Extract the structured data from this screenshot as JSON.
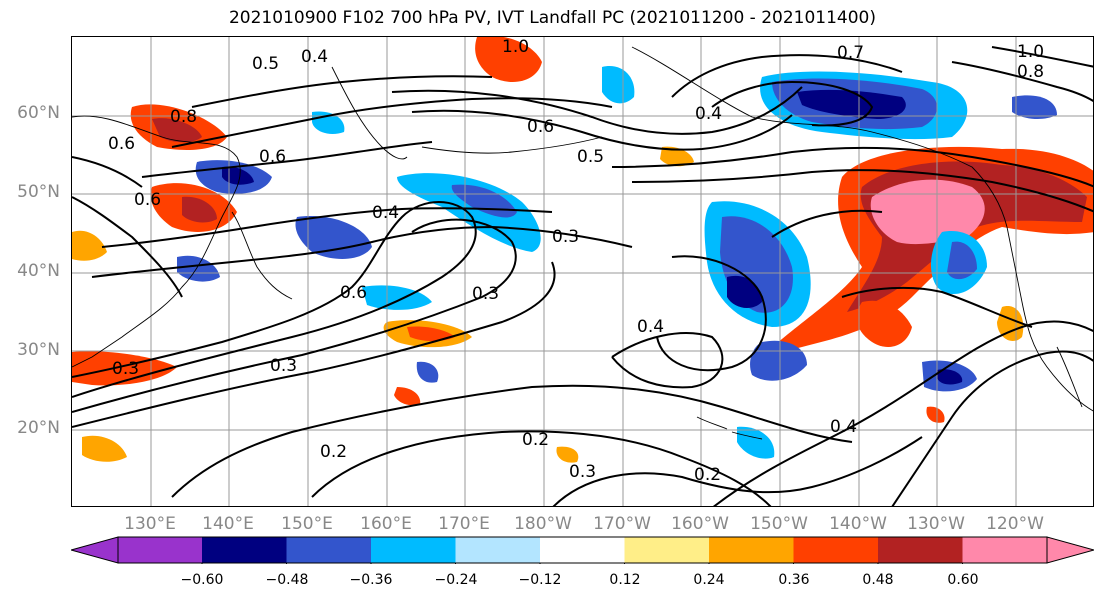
{
  "title": "2021010900 F102 700 hPa PV, IVT Landfall PC (2021011200 - 2021011400)",
  "lat_labels": [
    "60°N",
    "50°N",
    "40°N",
    "30°N",
    "20°N"
  ],
  "lon_labels": [
    "130°E",
    "140°E",
    "150°E",
    "160°E",
    "170°E",
    "180°W",
    "170°W",
    "160°W",
    "150°W",
    "140°W",
    "130°W",
    "120°W"
  ],
  "contour_labels": [
    "0.4",
    "0.5",
    "0.8",
    "0.6",
    "0.6",
    "0.6",
    "0.4",
    "0.3",
    "0.3",
    "0.6",
    "0.3",
    "0.3",
    "0.2",
    "0.4",
    "0.3",
    "0.2",
    "0.2",
    "0.4",
    "0.7",
    "0.4",
    "0.6",
    "0.5",
    "1.0",
    "1.0",
    "0.8"
  ],
  "colorbar": {
    "ticks": [
      "−0.60",
      "−0.48",
      "−0.36",
      "−0.24",
      "−0.12",
      "0.12",
      "0.24",
      "0.36",
      "0.48",
      "0.60"
    ],
    "colors": [
      "#9933cc",
      "#000080",
      "#3355cc",
      "#00bbff",
      "#b3e5ff",
      "#ffffff",
      "#ffee88",
      "#ffa500",
      "#ff4000",
      "#b22222",
      "#ff88aa"
    ],
    "extend": "both"
  },
  "palette": {
    "neg3": "#000080",
    "neg2": "#3355cc",
    "neg1": "#00bbff",
    "pos1": "#ffa500",
    "pos2": "#ff4000",
    "pos3": "#b22222",
    "pos4": "#ff88aa"
  }
}
